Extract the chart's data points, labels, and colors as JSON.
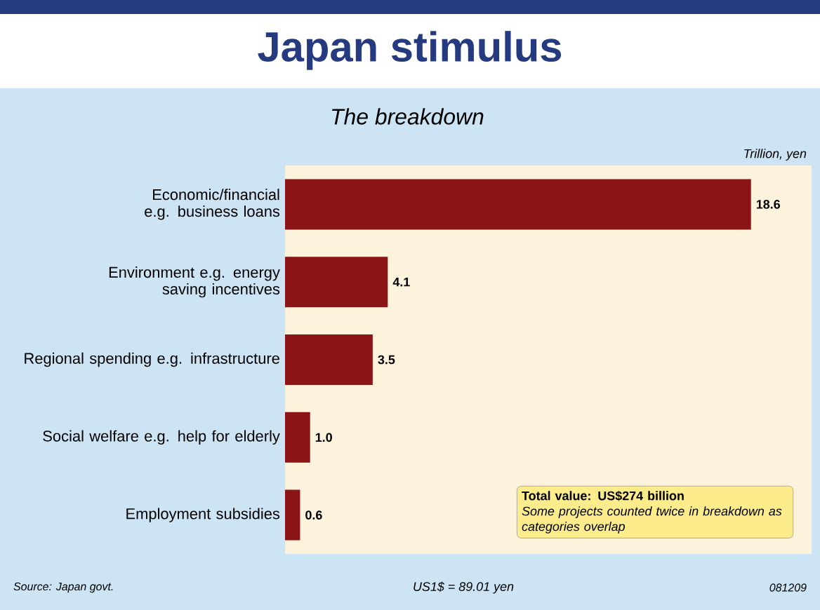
{
  "chart_data": {
    "type": "bar",
    "orientation": "horizontal",
    "title": "Japan stimulus",
    "subtitle": "The breakdown",
    "xlabel": "Trillion, yen",
    "categories": [
      "Economic/financial e.g. business loans",
      "Environment e.g. energy saving incentives",
      "Regional spending e.g. infrastructure",
      "Social welfare e.g. help for elderly",
      "Employment subsidies"
    ],
    "values": [
      18.6,
      4.1,
      3.5,
      1.0,
      0.6
    ],
    "value_labels": [
      "18.6",
      "4.1",
      "3.5",
      "1.0",
      "0.6"
    ],
    "color": "#8b1416",
    "annotations": [
      "Total value: US$274 billion",
      "Some projects counted twice in breakdown as categories overlap",
      "Source: Japan govt.",
      "US1$ = 89.01 yen",
      "081209"
    ]
  }
}
